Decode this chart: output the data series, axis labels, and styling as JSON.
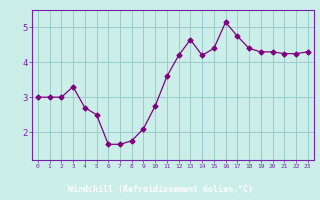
{
  "x": [
    0,
    1,
    2,
    3,
    4,
    5,
    6,
    7,
    8,
    9,
    10,
    11,
    12,
    13,
    14,
    15,
    16,
    17,
    18,
    19,
    20,
    21,
    22,
    23
  ],
  "y": [
    3.0,
    3.0,
    3.0,
    3.3,
    2.7,
    2.5,
    1.65,
    1.65,
    1.75,
    2.1,
    2.75,
    3.6,
    4.2,
    4.65,
    4.2,
    4.4,
    5.15,
    4.75,
    4.4,
    4.3,
    4.3,
    4.25,
    4.25,
    4.3
  ],
  "line_color": "#800080",
  "marker": "D",
  "marker_size": 2.5,
  "bg_color": "#cceee8",
  "grid_color": "#99cccc",
  "xlabel": "Windchill (Refroidissement éolien,°C)",
  "xlabel_color": "#ffffff",
  "xlabel_bg": "#7733aa",
  "tick_label_color": "#7722aa",
  "axis_color": "#7722aa",
  "ylabel_ticks": [
    2,
    3,
    4,
    5
  ],
  "xlim": [
    -0.5,
    23.5
  ],
  "ylim": [
    1.2,
    5.5
  ]
}
